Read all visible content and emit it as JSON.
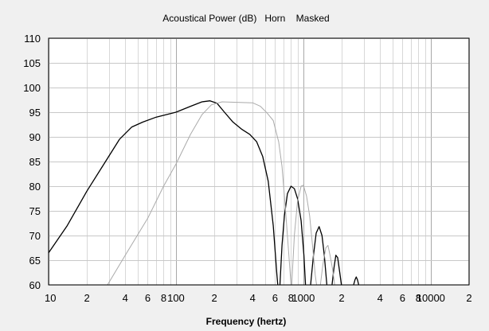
{
  "chart_data": {
    "type": "line",
    "title": "Acoustical Power (dB)   Horn    Masked",
    "xlabel": "Frequency (hertz)",
    "ylabel": "",
    "x_scale": "log",
    "xlim": [
      10,
      20000
    ],
    "ylim": [
      60,
      110
    ],
    "grid": true,
    "y_ticks": [
      60,
      65,
      70,
      75,
      80,
      85,
      90,
      95,
      100,
      105,
      110
    ],
    "x_ticks": [
      {
        "value": 10,
        "label": "10"
      },
      {
        "value": 20,
        "label": "2"
      },
      {
        "value": 40,
        "label": "4"
      },
      {
        "value": 60,
        "label": "6"
      },
      {
        "value": 80,
        "label": "8"
      },
      {
        "value": 100,
        "label": "100"
      },
      {
        "value": 200,
        "label": "2"
      },
      {
        "value": 400,
        "label": "4"
      },
      {
        "value": 600,
        "label": "6"
      },
      {
        "value": 800,
        "label": "8"
      },
      {
        "value": 1000,
        "label": "1000"
      },
      {
        "value": 2000,
        "label": "2"
      },
      {
        "value": 4000,
        "label": "4"
      },
      {
        "value": 6000,
        "label": "6"
      },
      {
        "value": 8000,
        "label": "8"
      },
      {
        "value": 10000,
        "label": "10000"
      },
      {
        "value": 20000,
        "label": "2"
      }
    ],
    "series": [
      {
        "color": "#000000",
        "points": [
          [
            10,
            66.5
          ],
          [
            14,
            72
          ],
          [
            20,
            79
          ],
          [
            28,
            85
          ],
          [
            36,
            89.5
          ],
          [
            45,
            92
          ],
          [
            55,
            93
          ],
          [
            70,
            94
          ],
          [
            100,
            95
          ],
          [
            130,
            96.2
          ],
          [
            160,
            97.1
          ],
          [
            185,
            97.3
          ],
          [
            210,
            96.8
          ],
          [
            240,
            95
          ],
          [
            280,
            93
          ],
          [
            330,
            91.5
          ],
          [
            380,
            90.5
          ],
          [
            430,
            89
          ],
          [
            480,
            86
          ],
          [
            530,
            81
          ],
          [
            580,
            72
          ],
          [
            620,
            62
          ],
          [
            630,
            60
          ]
        ]
      },
      {
        "color": "#000000",
        "points": [
          [
            655,
            60
          ],
          [
            680,
            68
          ],
          [
            710,
            74
          ],
          [
            750,
            78.5
          ],
          [
            800,
            80
          ],
          [
            850,
            79.5
          ],
          [
            900,
            77.5
          ],
          [
            960,
            73
          ],
          [
            1010,
            66
          ],
          [
            1040,
            60
          ]
        ]
      },
      {
        "color": "#000000",
        "points": [
          [
            1140,
            60
          ],
          [
            1200,
            66
          ],
          [
            1260,
            70.5
          ],
          [
            1330,
            71.8
          ],
          [
            1400,
            70
          ],
          [
            1460,
            66
          ],
          [
            1530,
            60
          ]
        ]
      },
      {
        "color": "#000000",
        "points": [
          [
            1680,
            60
          ],
          [
            1740,
            63.5
          ],
          [
            1800,
            66
          ],
          [
            1860,
            65.5
          ],
          [
            1930,
            62.5
          ],
          [
            1990,
            60
          ]
        ]
      },
      {
        "color": "#000000",
        "points": [
          [
            2480,
            60
          ],
          [
            2540,
            61
          ],
          [
            2600,
            61.6
          ],
          [
            2660,
            61
          ],
          [
            2720,
            60
          ]
        ]
      },
      {
        "color": "#aaaaaa",
        "points": [
          [
            29,
            60
          ],
          [
            40,
            66
          ],
          [
            60,
            73.5
          ],
          [
            80,
            80
          ],
          [
            100,
            84.5
          ],
          [
            130,
            90.5
          ],
          [
            160,
            94.5
          ],
          [
            190,
            96.5
          ],
          [
            230,
            97.1
          ],
          [
            300,
            97
          ],
          [
            400,
            96.9
          ],
          [
            460,
            96.2
          ],
          [
            520,
            94.8
          ],
          [
            580,
            93.3
          ],
          [
            640,
            89
          ],
          [
            680,
            84
          ],
          [
            720,
            76
          ],
          [
            760,
            68
          ],
          [
            790,
            62
          ],
          [
            800,
            60
          ]
        ]
      },
      {
        "color": "#aaaaaa",
        "points": [
          [
            810,
            60
          ],
          [
            850,
            70
          ],
          [
            900,
            77
          ],
          [
            960,
            80
          ],
          [
            1000,
            80.2
          ],
          [
            1060,
            78
          ],
          [
            1120,
            74
          ],
          [
            1180,
            68
          ],
          [
            1240,
            62
          ],
          [
            1270,
            60
          ]
        ]
      },
      {
        "color": "#aaaaaa",
        "points": [
          [
            1360,
            60
          ],
          [
            1420,
            64
          ],
          [
            1500,
            67.5
          ],
          [
            1560,
            68
          ],
          [
            1620,
            66
          ],
          [
            1700,
            63
          ],
          [
            1760,
            60
          ]
        ]
      }
    ]
  }
}
